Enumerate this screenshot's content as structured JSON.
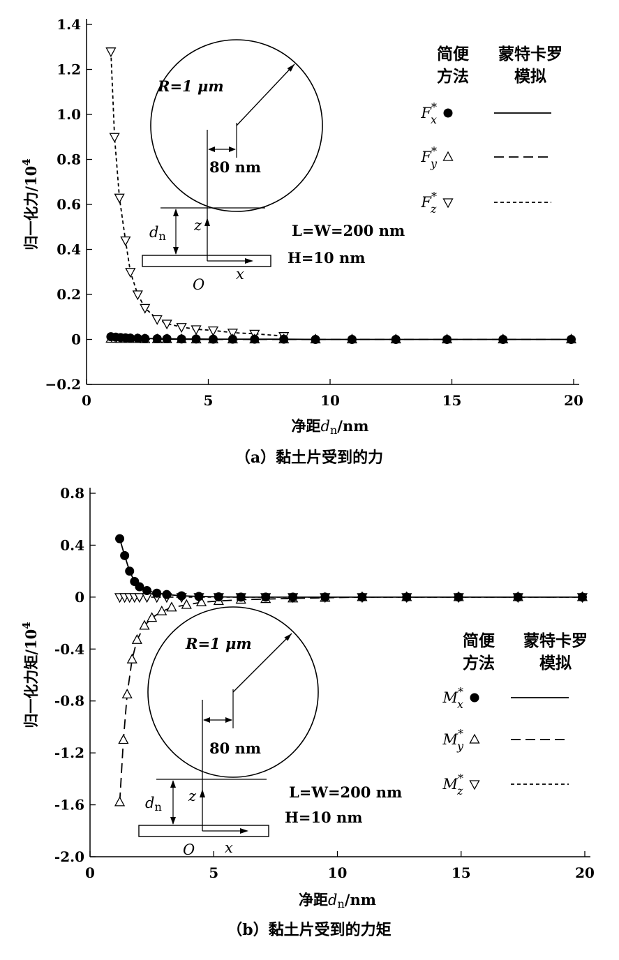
{
  "chart_data": [
    {
      "type": "scatter",
      "caption": "（a）黏土片受到的力",
      "xlabel_prefix": "净距",
      "xlabel_var": "d",
      "xlabel_sub": "n",
      "xlabel_unit": "/nm",
      "ylabel": "归一化力/10",
      "ylabel_exp": "4",
      "xlim": [
        0,
        20
      ],
      "ylim": [
        -0.2,
        1.4
      ],
      "xticks": [
        "0",
        "5",
        "10",
        "15",
        "20"
      ],
      "yticks": [
        "1.4",
        "1.2",
        "1.0",
        "0.8",
        "0.6",
        "0.4",
        "0.2",
        "0",
        "−0.2"
      ],
      "legend": {
        "header_left": [
          "简便",
          "方法"
        ],
        "header_right": [
          "蒙特卡罗",
          "模拟"
        ],
        "entries": [
          {
            "sym": "F",
            "sub": "x",
            "sup": "*",
            "marker": "circle",
            "line": "solid"
          },
          {
            "sym": "F",
            "sub": "y",
            "sup": "*",
            "marker": "triangle-up",
            "line": "dashed"
          },
          {
            "sym": "F",
            "sub": "z",
            "sup": "*",
            "marker": "triangle-down",
            "line": "dotted"
          }
        ]
      },
      "inset": {
        "radius_label": "R=1 μm",
        "offset_label": "80 nm",
        "dim_label": "L=W=200 nm",
        "thick_label": "H=10 nm",
        "gap_label": "d",
        "gap_sub": "n",
        "axis_z": "z",
        "axis_x": "x",
        "origin": "O"
      },
      "series": [
        {
          "marker": "circle",
          "line": "solid",
          "x": [
            1.0,
            1.2,
            1.4,
            1.6,
            1.8,
            2.1,
            2.4,
            2.9,
            3.3,
            3.9,
            4.5,
            5.2,
            6.0,
            6.9,
            8.1,
            9.4,
            10.9,
            12.7,
            14.8,
            17.1,
            19.9
          ],
          "y": [
            0.012,
            0.01,
            0.008,
            0.007,
            0.006,
            0.005,
            0.004,
            0.003,
            0.003,
            0.002,
            0.002,
            0.001,
            0.001,
            0.001,
            0.001,
            0.0,
            0.0,
            0.0,
            0.0,
            0.0,
            0.0
          ]
        },
        {
          "marker": "triangle-up",
          "line": "dashed",
          "x": [
            1.0,
            1.2,
            1.4,
            1.6,
            1.8,
            2.1,
            2.4,
            2.9,
            3.3,
            3.9,
            4.5,
            5.2,
            6.0,
            6.9,
            8.1,
            9.4,
            10.9,
            12.7,
            14.8,
            17.1,
            19.9
          ],
          "y": [
            0.003,
            0.003,
            0.002,
            0.002,
            0.002,
            0.002,
            0.001,
            0.001,
            0.001,
            0.001,
            0.0,
            0.0,
            0.0,
            0.0,
            0.0,
            0.0,
            0.0,
            0.0,
            0.0,
            0.0,
            0.0
          ]
        },
        {
          "marker": "triangle-down",
          "line": "dotted",
          "x": [
            1.0,
            1.15,
            1.35,
            1.6,
            1.8,
            2.1,
            2.4,
            2.9,
            3.3,
            3.9,
            4.5,
            5.2,
            6.0,
            6.9,
            8.1
          ],
          "y": [
            1.28,
            0.9,
            0.63,
            0.44,
            0.3,
            0.2,
            0.14,
            0.09,
            0.07,
            0.055,
            0.045,
            0.04,
            0.03,
            0.025,
            0.015
          ]
        }
      ]
    },
    {
      "type": "scatter",
      "caption": "（b）黏土片受到的力矩",
      "xlabel_prefix": "净距",
      "xlabel_var": "d",
      "xlabel_sub": "n",
      "xlabel_unit": "/nm",
      "ylabel": "归一化力矩/10",
      "ylabel_exp": "4",
      "xlim": [
        0,
        20
      ],
      "ylim": [
        -2.0,
        0.8
      ],
      "xticks": [
        "0",
        "5",
        "10",
        "15",
        "20"
      ],
      "yticks": [
        "0.8",
        "0.4",
        "0",
        "-0.4",
        "-0.8",
        "-1.2",
        "-1.6",
        "-2.0"
      ],
      "legend": {
        "header_left": [
          "简便",
          "方法"
        ],
        "header_right": [
          "蒙特卡罗",
          "模拟"
        ],
        "entries": [
          {
            "sym": "M",
            "sub": "x",
            "sup": "*",
            "marker": "circle",
            "line": "solid"
          },
          {
            "sym": "M",
            "sub": "y",
            "sup": "*",
            "marker": "triangle-up",
            "line": "dashed"
          },
          {
            "sym": "M",
            "sub": "z",
            "sup": "*",
            "marker": "triangle-down",
            "line": "dotted"
          }
        ]
      },
      "inset": {
        "radius_label": "R=1 μm",
        "offset_label": "80 nm",
        "dim_label": "L=W=200 nm",
        "thick_label": "H=10 nm",
        "gap_label": "d",
        "gap_sub": "n",
        "axis_z": "z",
        "axis_x": "x",
        "origin": "O"
      },
      "series": [
        {
          "marker": "circle",
          "line": "solid",
          "x": [
            1.2,
            1.4,
            1.6,
            1.8,
            2.0,
            2.3,
            2.7,
            3.1,
            3.7,
            4.4,
            5.2,
            6.1,
            7.1,
            8.2,
            9.5,
            11.0,
            12.8,
            14.9,
            17.3,
            19.9
          ],
          "y": [
            0.45,
            0.32,
            0.2,
            0.12,
            0.08,
            0.05,
            0.03,
            0.02,
            0.01,
            0.005,
            0.002,
            0.0,
            0.0,
            0.0,
            0.0,
            0.0,
            0.0,
            0.0,
            0.0,
            0.0
          ]
        },
        {
          "marker": "triangle-up",
          "line": "dashed",
          "x": [
            1.2,
            1.35,
            1.5,
            1.7,
            1.9,
            2.2,
            2.5,
            2.9,
            3.3,
            3.9,
            4.5,
            5.2,
            6.1,
            7.1,
            8.2,
            9.5,
            11.0,
            12.8,
            14.9,
            17.3,
            19.9
          ],
          "y": [
            -1.58,
            -1.1,
            -0.75,
            -0.48,
            -0.33,
            -0.22,
            -0.16,
            -0.11,
            -0.08,
            -0.06,
            -0.04,
            -0.03,
            -0.02,
            -0.015,
            -0.01,
            -0.005,
            0.0,
            0.0,
            0.0,
            0.0,
            0.0
          ]
        },
        {
          "marker": "triangle-down",
          "line": "dotted",
          "x": [
            1.2,
            1.4,
            1.6,
            1.8,
            2.0,
            2.3,
            2.7,
            3.1,
            3.7,
            4.4,
            5.2,
            6.1,
            7.1,
            8.2,
            9.5,
            11.0,
            12.8,
            14.9,
            17.3,
            19.9
          ],
          "y": [
            0.0,
            0.0,
            0.0,
            0.0,
            0.0,
            0.0,
            0.0,
            0.0,
            0.0,
            0.0,
            0.0,
            0.0,
            0.0,
            0.0,
            0.0,
            0.0,
            0.0,
            0.0,
            0.0,
            0.0
          ]
        }
      ]
    }
  ]
}
